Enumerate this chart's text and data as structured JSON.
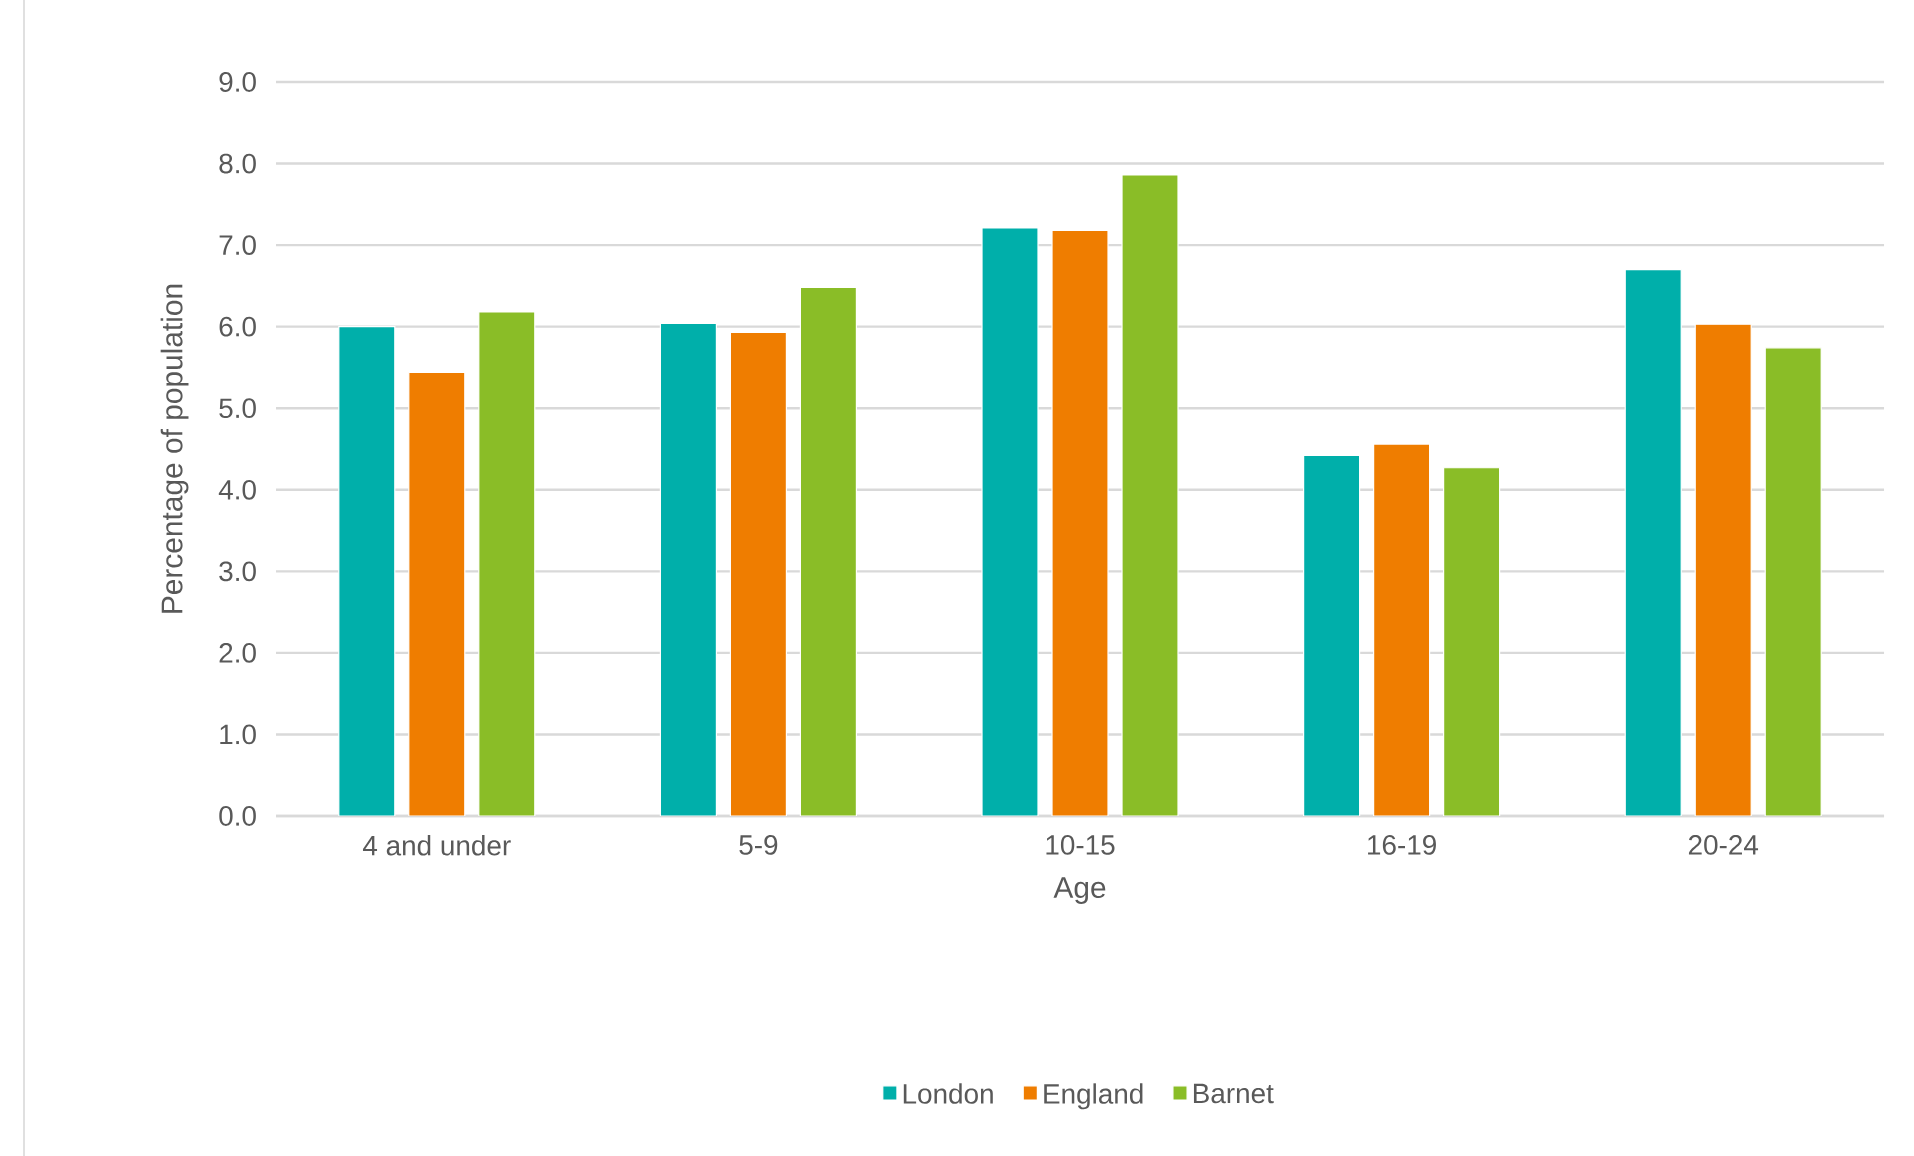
{
  "chart_data": {
    "type": "bar",
    "xlabel": "Age",
    "ylabel": "Percentage of population",
    "categories": [
      "4 and under",
      "5-9",
      "10-15",
      "16-19",
      "20-24"
    ],
    "series": [
      {
        "name": "London",
        "color": "#00afaa",
        "values": [
          6.0,
          6.04,
          7.21,
          4.42,
          6.7
        ]
      },
      {
        "name": "England",
        "color": "#ef7d00",
        "values": [
          5.44,
          5.93,
          7.18,
          4.56,
          6.03
        ]
      },
      {
        "name": "Barnet",
        "color": "#8abd27",
        "values": [
          6.18,
          6.48,
          7.86,
          4.27,
          5.74
        ]
      }
    ],
    "ylim": [
      0,
      9
    ],
    "yticks": [
      {
        "value": 0,
        "label": "0.0"
      },
      {
        "value": 1,
        "label": "1.0"
      },
      {
        "value": 2,
        "label": "2.0"
      },
      {
        "value": 3,
        "label": "3.0"
      },
      {
        "value": 4,
        "label": "4.0"
      },
      {
        "value": 5,
        "label": "5.0"
      },
      {
        "value": 6,
        "label": "6.0"
      },
      {
        "value": 7,
        "label": "7.0"
      },
      {
        "value": 8,
        "label": "8.0"
      },
      {
        "value": 9,
        "label": "9.0"
      }
    ],
    "grid": "y",
    "legend": "bottom"
  }
}
